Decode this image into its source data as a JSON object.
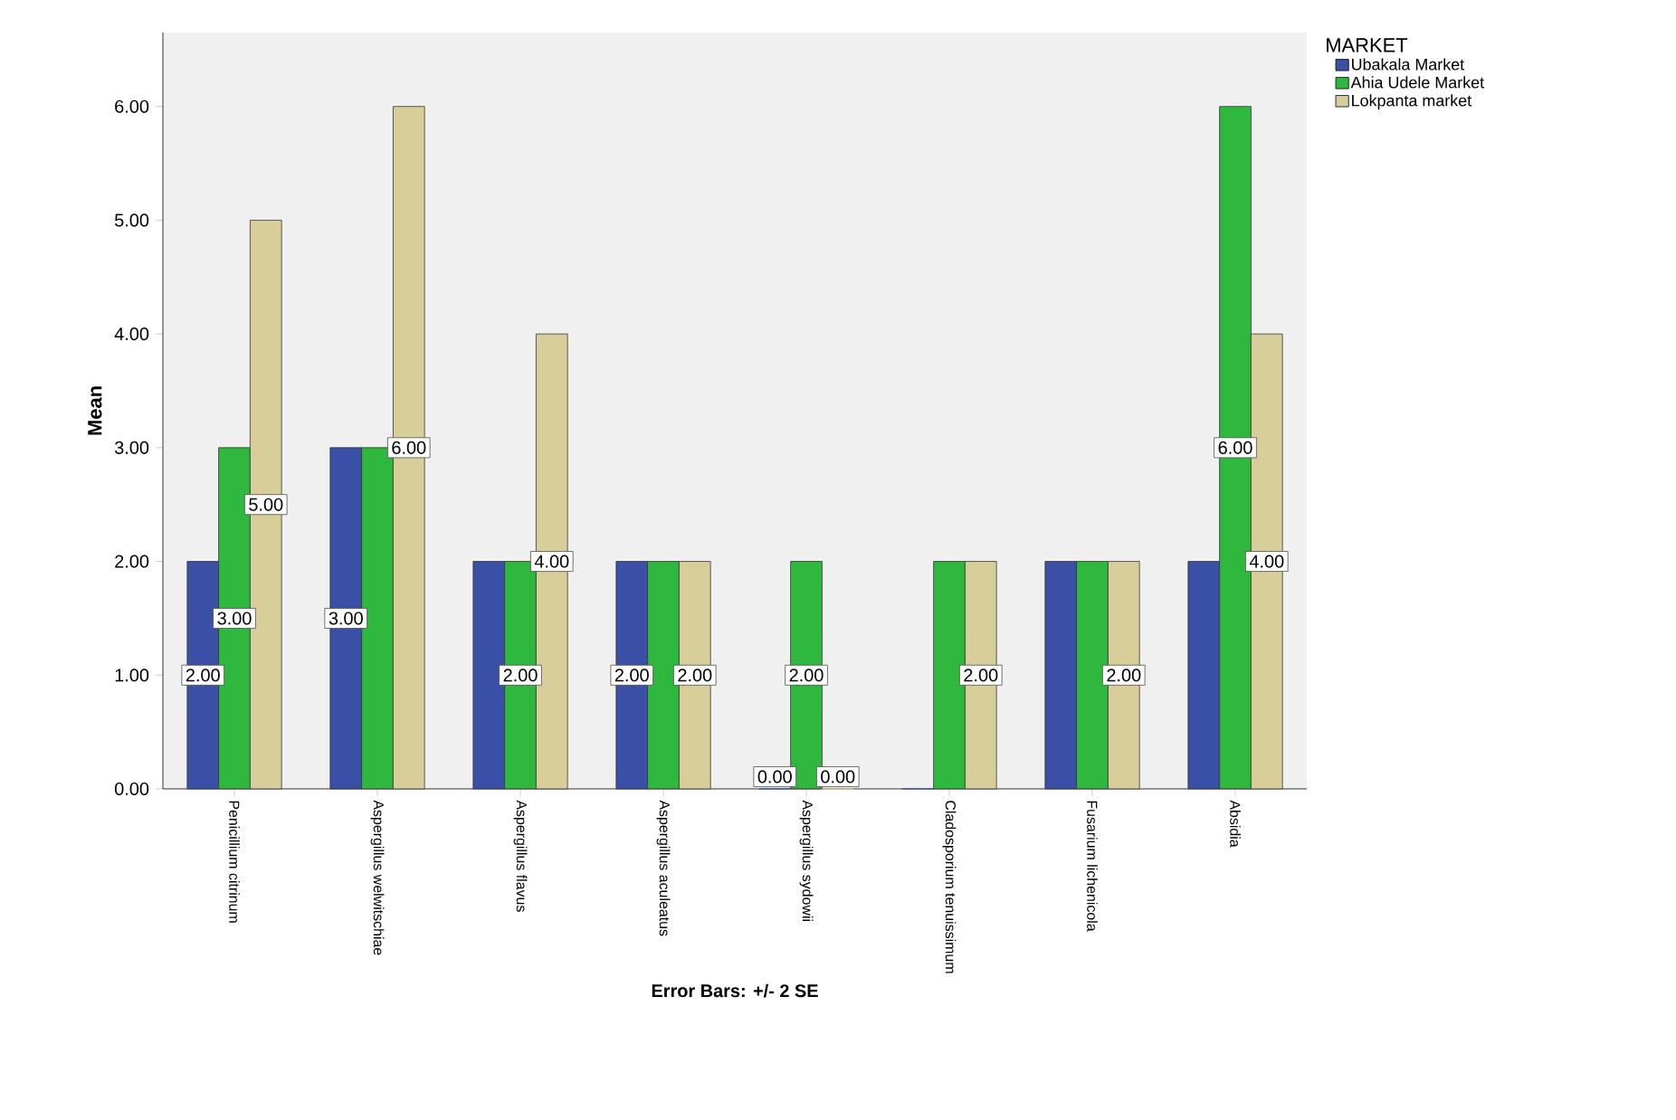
{
  "chart_data": {
    "type": "bar",
    "ylabel": "Mean",
    "xlabel": "Error Bars:  +/- 2 SE",
    "legend_title": "MARKET",
    "legend": "top right",
    "categories": [
      "Penicillium citrinum",
      "Aspergillus welwitschiae",
      "Aspergillus flavus",
      "Aspergillus aculeatus",
      "Aspergillus sydowii",
      "Cladosporium tenuissimum",
      "Fusarium lichenicola",
      "Absidia"
    ],
    "series": [
      {
        "name": "Ubakala Market",
        "color": "#3a4fa6",
        "values": [
          2,
          3,
          2,
          2,
          0,
          0,
          2,
          2
        ],
        "value_labels": [
          "2.00",
          "3.00",
          null,
          "2.00",
          "0.00",
          null,
          null,
          null
        ]
      },
      {
        "name": "Ahia Udele Market",
        "color": "#2eb83e",
        "values": [
          3,
          3,
          2,
          2,
          2,
          2,
          2,
          6
        ],
        "value_labels": [
          "3.00",
          null,
          "2.00",
          null,
          "2.00",
          null,
          null,
          "6.00"
        ]
      },
      {
        "name": "Lokpanta market",
        "color": "#d8ce9a",
        "values": [
          5,
          6,
          4,
          2,
          0,
          2,
          2,
          4
        ],
        "value_labels": [
          "5.00",
          "6.00",
          "4.00",
          "2.00",
          "0.00",
          "2.00",
          "2.00",
          "4.00"
        ]
      }
    ],
    "ylim": [
      0,
      6.65
    ],
    "yticks": [
      {
        "value": 0,
        "label": "0.00"
      },
      {
        "value": 1,
        "label": "1.00"
      },
      {
        "value": 2,
        "label": "2.00"
      },
      {
        "value": 3,
        "label": "3.00"
      },
      {
        "value": 4,
        "label": "4.00"
      },
      {
        "value": 5,
        "label": "5.00"
      },
      {
        "value": 6,
        "label": "6.00"
      }
    ],
    "grid": false
  }
}
